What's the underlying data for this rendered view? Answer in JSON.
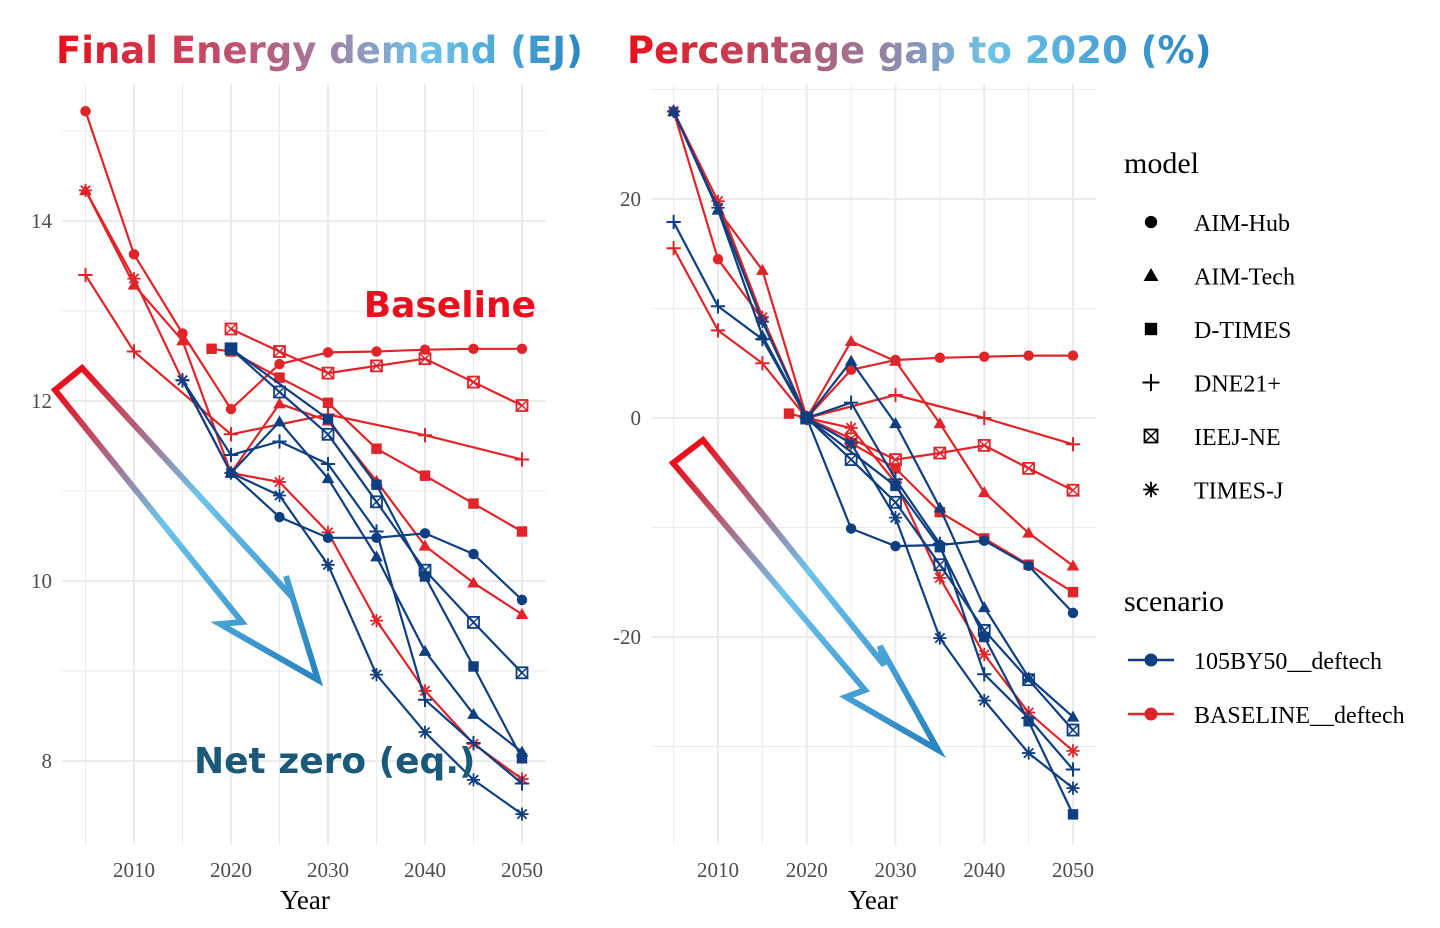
{
  "colors": {
    "netzero": "#0f3f80",
    "baseline": "#e0252a",
    "grid": "#ebebeb",
    "baseline_callout": "#e8101c",
    "netzero_callout": "#1a5a78",
    "gradient_red": "#e8101c",
    "gradient_light_blue": "#6ec3ea",
    "gradient_blue": "#2a86c2"
  },
  "annotations": {
    "baseline_label": "Baseline",
    "netzero_label": "Net zero (eq.)"
  },
  "legend": {
    "model_title": "model",
    "models": [
      {
        "name": "AIM-Hub",
        "icon": "circle-icon"
      },
      {
        "name": "AIM-Tech",
        "icon": "triangle-icon"
      },
      {
        "name": "D-TIMES",
        "icon": "square-icon"
      },
      {
        "name": "DNE21+",
        "icon": "plus-icon"
      },
      {
        "name": "IEEJ-NE",
        "icon": "boxed-x-icon"
      },
      {
        "name": "TIMES-J",
        "icon": "asterisk-icon"
      }
    ],
    "scenario_title": "scenario",
    "scenarios": [
      {
        "name": "105BY50__deftech",
        "color": "#0f3f80"
      },
      {
        "name": "BASELINE__deftech",
        "color": "#e0252a"
      }
    ]
  },
  "chart_data": [
    {
      "type": "line",
      "title": "Final Energy demand (EJ)",
      "xlabel": "Year",
      "ylabel": "",
      "xlim": [
        2003,
        2052
      ],
      "ylim": [
        7.1,
        15.5
      ],
      "xticks": [
        2010,
        2020,
        2030,
        2040,
        2050
      ],
      "yticks": [
        8,
        10,
        12,
        14
      ],
      "grid": true,
      "series": [
        {
          "model": "AIM-Hub",
          "scenario": "BASELINE__deftech",
          "x": [
            2005,
            2010,
            2015,
            2020,
            2025,
            2030,
            2035,
            2040,
            2045,
            2050
          ],
          "values": [
            15.22,
            13.63,
            12.75,
            11.91,
            12.41,
            12.54,
            12.55,
            12.57,
            12.58,
            12.58
          ]
        },
        {
          "model": "AIM-Tech",
          "scenario": "BASELINE__deftech",
          "x": [
            2005,
            2010,
            2015,
            2020,
            2025,
            2030,
            2035,
            2040,
            2045,
            2050
          ],
          "values": [
            14.34,
            13.29,
            12.67,
            11.2,
            11.97,
            11.78,
            11.11,
            10.39,
            9.98,
            9.63
          ]
        },
        {
          "model": "D-TIMES",
          "scenario": "BASELINE__deftech",
          "x": [
            2018,
            2020,
            2025,
            2030,
            2035,
            2040,
            2045,
            2050
          ],
          "values": [
            12.58,
            12.55,
            12.26,
            11.98,
            11.47,
            11.17,
            10.86,
            10.55
          ]
        },
        {
          "model": "DNE21+",
          "scenario": "BASELINE__deftech",
          "x": [
            2005,
            2010,
            2020,
            2030,
            2040,
            2050
          ],
          "values": [
            13.4,
            12.55,
            11.63,
            11.85,
            11.62,
            11.35
          ]
        },
        {
          "model": "IEEJ-NE",
          "scenario": "BASELINE__deftech",
          "x": [
            2020,
            2025,
            2030,
            2035,
            2040,
            2045,
            2050
          ],
          "values": [
            12.8,
            12.55,
            12.31,
            12.39,
            12.47,
            12.21,
            11.95
          ]
        },
        {
          "model": "TIMES-J",
          "scenario": "BASELINE__deftech",
          "x": [
            2005,
            2010,
            2015,
            2020,
            2025,
            2030,
            2035,
            2040,
            2045,
            2050
          ],
          "values": [
            14.34,
            13.36,
            12.23,
            11.2,
            11.1,
            10.54,
            9.56,
            8.78,
            8.19,
            7.8
          ]
        },
        {
          "model": "AIM-Hub",
          "scenario": "105BY50__deftech",
          "x": [
            2020,
            2025,
            2030,
            2035,
            2040,
            2045,
            2050
          ],
          "values": [
            11.2,
            10.71,
            10.48,
            10.48,
            10.53,
            10.3,
            9.79
          ]
        },
        {
          "model": "AIM-Tech",
          "scenario": "105BY50__deftech",
          "x": [
            2020,
            2025,
            2030,
            2035,
            2040,
            2045,
            2050
          ],
          "values": [
            11.2,
            11.77,
            11.14,
            10.27,
            9.22,
            8.52,
            8.1
          ]
        },
        {
          "model": "D-TIMES",
          "scenario": "105BY50__deftech",
          "x": [
            2020,
            2030,
            2035,
            2040,
            2045,
            2050
          ],
          "values": [
            12.58,
            11.8,
            11.07,
            10.05,
            9.05,
            8.03
          ]
        },
        {
          "model": "DNE21+",
          "scenario": "105BY50__deftech",
          "x": [
            2015,
            2020,
            2025,
            2030,
            2035,
            2040,
            2045,
            2050
          ],
          "values": [
            12.23,
            11.4,
            11.55,
            11.3,
            10.55,
            8.68,
            8.2,
            7.75
          ]
        },
        {
          "model": "IEEJ-NE",
          "scenario": "105BY50__deftech",
          "x": [
            2020,
            2025,
            2030,
            2035,
            2040,
            2045,
            2050
          ],
          "values": [
            12.58,
            12.1,
            11.63,
            10.88,
            10.12,
            9.54,
            8.98
          ]
        },
        {
          "model": "TIMES-J",
          "scenario": "105BY50__deftech",
          "x": [
            2015,
            2020,
            2025,
            2030,
            2035,
            2040,
            2045,
            2050
          ],
          "values": [
            12.23,
            11.2,
            10.95,
            10.18,
            8.96,
            8.32,
            7.79,
            7.41
          ]
        }
      ]
    },
    {
      "type": "line",
      "title": "Percentage gap to 2020 (%)",
      "xlabel": "Year",
      "ylabel": "",
      "xlim": [
        2003,
        2052
      ],
      "ylim": [
        -39,
        29
      ],
      "xticks": [
        2010,
        2020,
        2030,
        2040,
        2050
      ],
      "yticks": [
        -20,
        0,
        20
      ],
      "grid": true,
      "series": [
        {
          "model": "AIM-Hub",
          "scenario": "BASELINE__deftech",
          "x": [
            2005,
            2010,
            2015,
            2020,
            2025,
            2030,
            2035,
            2040,
            2045,
            2050
          ],
          "values": [
            28,
            14.5,
            9.0,
            0,
            4.4,
            5.3,
            5.5,
            5.6,
            5.7,
            5.7
          ]
        },
        {
          "model": "AIM-Tech",
          "scenario": "BASELINE__deftech",
          "x": [
            2005,
            2010,
            2015,
            2020,
            2025,
            2030,
            2035,
            2040,
            2045,
            2050
          ],
          "values": [
            28,
            19,
            13.5,
            0,
            7.0,
            5.2,
            -0.5,
            -6.8,
            -10.5,
            -13.5
          ]
        },
        {
          "model": "D-TIMES",
          "scenario": "BASELINE__deftech",
          "x": [
            2018,
            2020,
            2025,
            2030,
            2035,
            2040,
            2045,
            2050
          ],
          "values": [
            0.4,
            0,
            -2.3,
            -4.6,
            -8.6,
            -11.0,
            -13.4,
            -15.9
          ]
        },
        {
          "model": "DNE21+",
          "scenario": "BASELINE__deftech",
          "x": [
            2005,
            2010,
            2015,
            2020,
            2030,
            2040,
            2050
          ],
          "values": [
            15.5,
            8.0,
            5.0,
            0,
            2.1,
            0.0,
            -2.4
          ]
        },
        {
          "model": "IEEJ-NE",
          "scenario": "BASELINE__deftech",
          "x": [
            2020,
            2025,
            2030,
            2035,
            2040,
            2045,
            2050
          ],
          "values": [
            0,
            -1.9,
            -3.8,
            -3.2,
            -2.5,
            -4.6,
            -6.6
          ]
        },
        {
          "model": "TIMES-J",
          "scenario": "BASELINE__deftech",
          "x": [
            2005,
            2010,
            2015,
            2020,
            2025,
            2030,
            2035,
            2040,
            2045,
            2050
          ],
          "values": [
            28,
            19.8,
            9.2,
            0,
            -0.9,
            -5.9,
            -14.6,
            -21.6,
            -26.9,
            -30.4
          ]
        },
        {
          "model": "AIM-Hub",
          "scenario": "105BY50__deftech",
          "x": [
            2020,
            2025,
            2030,
            2035,
            2040,
            2045,
            2050
          ],
          "values": [
            0,
            -10.1,
            -11.7,
            -11.6,
            -11.2,
            -13.5,
            -17.8
          ]
        },
        {
          "model": "AIM-Tech",
          "scenario": "105BY50__deftech",
          "x": [
            2005,
            2010,
            2015,
            2020,
            2025,
            2030,
            2035,
            2040,
            2045,
            2050
          ],
          "values": [
            28,
            19.0,
            7.5,
            0,
            5.2,
            -0.5,
            -8.2,
            -17.3,
            -23.7,
            -27.3
          ]
        },
        {
          "model": "D-TIMES",
          "scenario": "105BY50__deftech",
          "x": [
            2020,
            2030,
            2035,
            2040,
            2045,
            2050
          ],
          "values": [
            0,
            -6.2,
            -11.8,
            -20.0,
            -27.7,
            -36.2
          ]
        },
        {
          "model": "DNE21+",
          "scenario": "105BY50__deftech",
          "x": [
            2005,
            2010,
            2015,
            2020,
            2025,
            2030,
            2035,
            2040,
            2045,
            2050
          ],
          "values": [
            17.9,
            10.2,
            7.2,
            0,
            1.4,
            -5.6,
            -11.5,
            -23.4,
            -27.4,
            -32.1
          ]
        },
        {
          "model": "IEEJ-NE",
          "scenario": "105BY50__deftech",
          "x": [
            2020,
            2025,
            2030,
            2035,
            2040,
            2045,
            2050
          ],
          "values": [
            0,
            -3.8,
            -7.7,
            -13.4,
            -19.4,
            -23.9,
            -28.5
          ]
        },
        {
          "model": "TIMES-J",
          "scenario": "105BY50__deftech",
          "x": [
            2005,
            2010,
            2015,
            2020,
            2025,
            2030,
            2035,
            2040,
            2045,
            2050
          ],
          "values": [
            28,
            19.2,
            8.8,
            0,
            -2.3,
            -9.1,
            -20.1,
            -25.8,
            -30.6,
            -33.8
          ]
        }
      ]
    }
  ]
}
